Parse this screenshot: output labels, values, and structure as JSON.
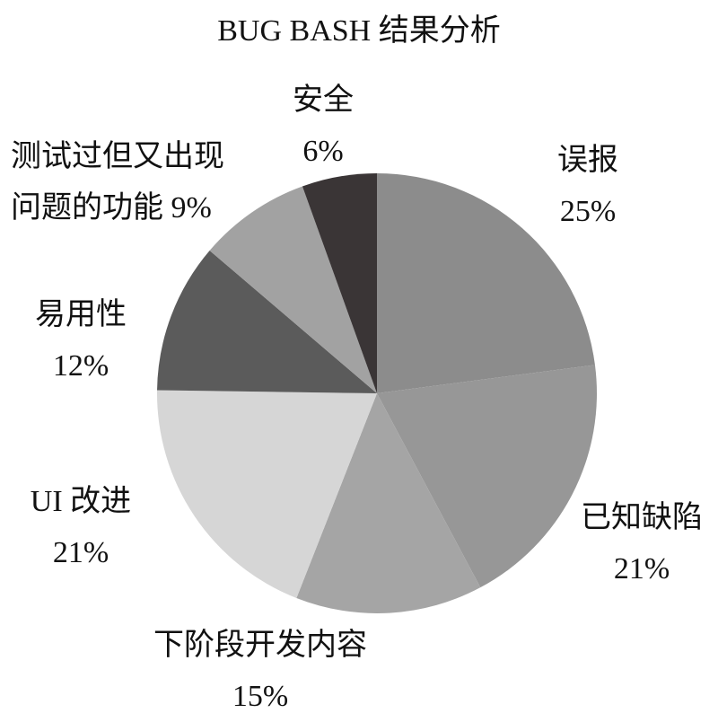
{
  "chart_data": {
    "type": "pie",
    "title": "BUG BASH 结果分析",
    "categories": [
      "误报",
      "已知缺陷",
      "下阶段开发内容",
      "UI 改进",
      "易用性",
      "测试过但又出现问题的功能",
      "安全"
    ],
    "values": [
      25,
      21,
      15,
      21,
      12,
      9,
      6
    ],
    "value_labels": [
      "25%",
      "21%",
      "15%",
      "21%",
      "12%",
      "9%",
      "6%"
    ],
    "colors": [
      "#8c8c8c",
      "#979797",
      "#a5a5a5",
      "#d6d6d6",
      "#5b5b5b",
      "#a2a2a2",
      "#3a3536"
    ]
  }
}
